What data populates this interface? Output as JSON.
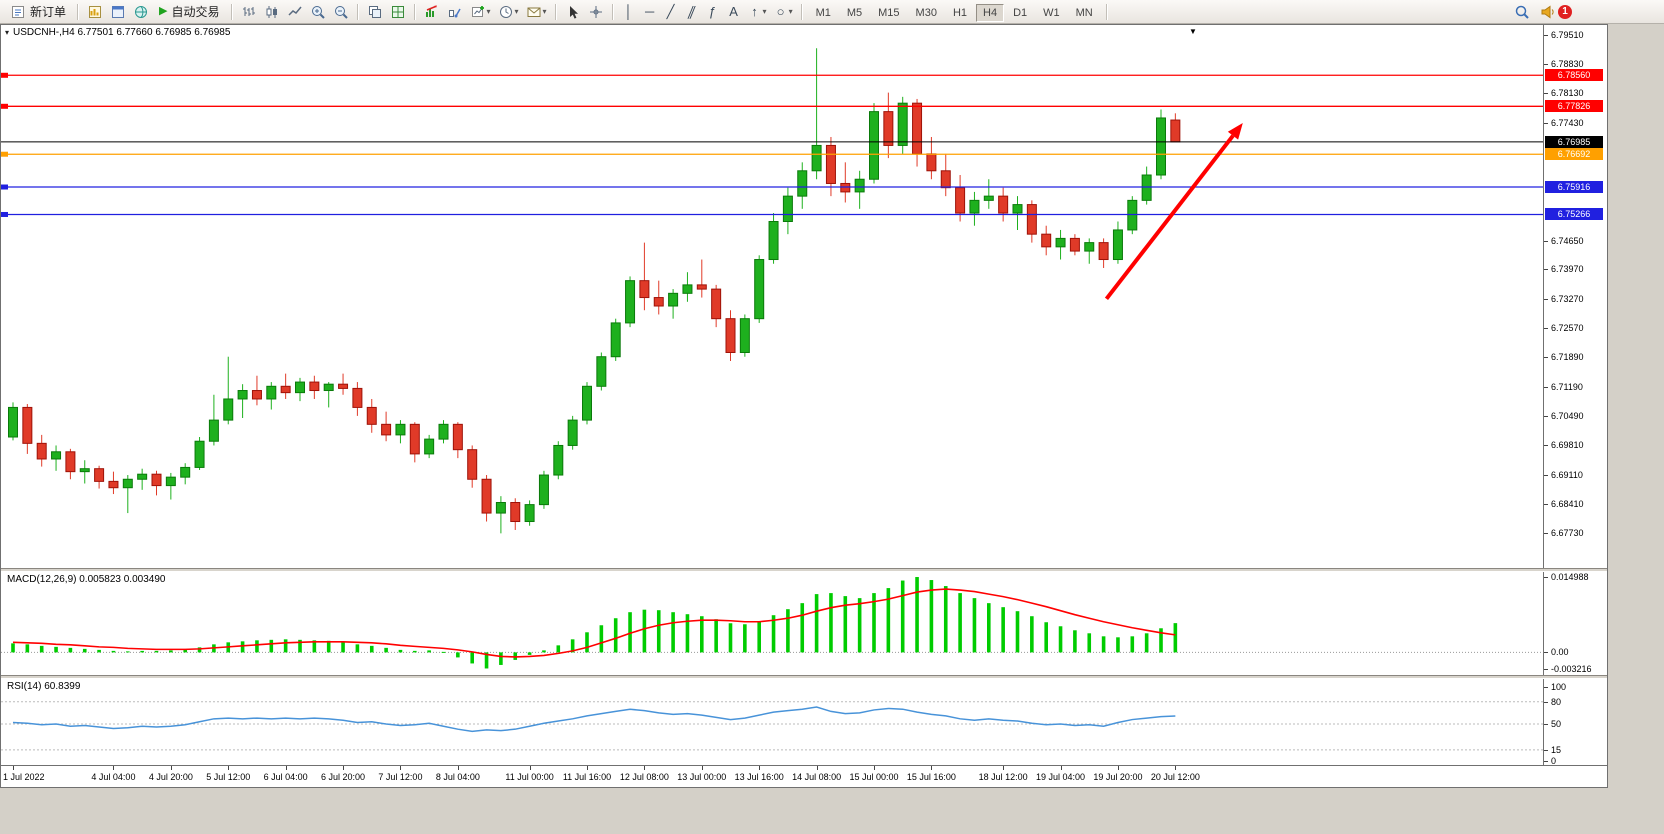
{
  "toolbar": {
    "new_order_label": "新订单",
    "autotrading_label": "自动交易",
    "timeframes": [
      "M1",
      "M5",
      "M15",
      "M30",
      "H1",
      "H4",
      "D1",
      "W1",
      "MN"
    ],
    "active_timeframe": "H4",
    "notification_count": "1",
    "glyphs": {
      "play": "▶",
      "vertical_line": "│",
      "horizontal_line": "─",
      "trendline": "╱",
      "channel": "∥",
      "fibonacci": "ƒ",
      "text_tool": "A",
      "arrows_tool": "↑",
      "shapes_tool": "○",
      "caret": "▾",
      "scroll_end": "▼",
      "title_menu": "▾"
    }
  },
  "chart": {
    "title": "USDCNH-,H4 6.77501 6.77660 6.76985 6.76985",
    "symbol": "USDCNH-",
    "period": "H4",
    "ohlc": {
      "open": "6.77501",
      "high": "6.77660",
      "low": "6.76985",
      "close": "6.76985"
    }
  },
  "indicators": {
    "macd_label": "MACD(12,26,9) 0.005823 0.003490",
    "rsi_label": "RSI(14) 60.8399"
  },
  "chart_data": [
    {
      "type": "candlestick",
      "symbol": "USDCNH-",
      "period": "H4",
      "ylim": [
        6.669,
        6.7975
      ],
      "y_tick_labels": [
        "6.79510",
        "6.78830",
        "6.78130",
        "6.77430",
        "6.74650",
        "6.73970",
        "6.73270",
        "6.72570",
        "6.71890",
        "6.71190",
        "6.70490",
        "6.69810",
        "6.69110",
        "6.68410",
        "6.67730"
      ],
      "x_tick_labels": [
        {
          "i": 0,
          "t": "1 Jul 2022"
        },
        {
          "i": 7,
          "t": "4 Jul 04:00"
        },
        {
          "i": 11,
          "t": "4 Jul 20:00"
        },
        {
          "i": 15,
          "t": "5 Jul 12:00"
        },
        {
          "i": 19,
          "t": "6 Jul 04:00"
        },
        {
          "i": 23,
          "t": "6 Jul 20:00"
        },
        {
          "i": 27,
          "t": "7 Jul 12:00"
        },
        {
          "i": 31,
          "t": "8 Jul 04:00"
        },
        {
          "i": 36,
          "t": "11 Jul 00:00"
        },
        {
          "i": 40,
          "t": "11 Jul 16:00"
        },
        {
          "i": 44,
          "t": "12 Jul 08:00"
        },
        {
          "i": 48,
          "t": "13 Jul 00:00"
        },
        {
          "i": 52,
          "t": "13 Jul 16:00"
        },
        {
          "i": 56,
          "t": "14 Jul 08:00"
        },
        {
          "i": 60,
          "t": "15 Jul 00:00"
        },
        {
          "i": 64,
          "t": "15 Jul 16:00"
        },
        {
          "i": 69,
          "t": "18 Jul 12:00"
        },
        {
          "i": 73,
          "t": "19 Jul 04:00"
        },
        {
          "i": 77,
          "t": "19 Jul 20:00"
        },
        {
          "i": 81,
          "t": "20 Jul 12:00"
        }
      ],
      "candles": [
        [
          6.7,
          6.7082,
          6.6992,
          6.707
        ],
        [
          6.707,
          6.7078,
          6.696,
          6.6985
        ],
        [
          6.6985,
          6.7005,
          6.693,
          6.6948
        ],
        [
          6.6948,
          6.698,
          6.692,
          6.6965
        ],
        [
          6.6965,
          6.6972,
          6.69,
          6.6918
        ],
        [
          6.6918,
          6.6945,
          6.689,
          6.6925
        ],
        [
          6.6925,
          6.6932,
          6.6878,
          6.6895
        ],
        [
          6.6895,
          6.6918,
          6.6865,
          6.688
        ],
        [
          6.688,
          6.691,
          6.682,
          6.69
        ],
        [
          6.69,
          6.6925,
          6.6875,
          6.6912
        ],
        [
          6.6912,
          6.692,
          6.6862,
          6.6885
        ],
        [
          6.6885,
          6.6915,
          6.6852,
          6.6905
        ],
        [
          6.6905,
          6.6938,
          6.6888,
          6.6928
        ],
        [
          6.6928,
          6.7,
          6.6922,
          6.699
        ],
        [
          6.699,
          6.71,
          6.698,
          6.704
        ],
        [
          6.704,
          6.719,
          6.703,
          6.709
        ],
        [
          6.709,
          6.7125,
          6.7045,
          6.711
        ],
        [
          6.711,
          6.7145,
          6.7075,
          6.709
        ],
        [
          6.709,
          6.713,
          6.7065,
          6.712
        ],
        [
          6.712,
          6.715,
          6.709,
          6.7105
        ],
        [
          6.7105,
          6.714,
          6.7085,
          6.713
        ],
        [
          6.713,
          6.7145,
          6.709,
          6.711
        ],
        [
          6.711,
          6.713,
          6.707,
          6.7125
        ],
        [
          6.7125,
          6.715,
          6.71,
          6.7115
        ],
        [
          6.7115,
          6.713,
          6.705,
          6.707
        ],
        [
          6.707,
          6.709,
          6.701,
          6.703
        ],
        [
          6.703,
          6.706,
          6.699,
          6.7005
        ],
        [
          6.7005,
          6.704,
          6.6985,
          6.703
        ],
        [
          6.703,
          6.7035,
          6.694,
          6.696
        ],
        [
          6.696,
          6.7005,
          6.695,
          6.6995
        ],
        [
          6.6995,
          6.704,
          6.6985,
          6.703
        ],
        [
          6.703,
          6.7035,
          6.695,
          6.697
        ],
        [
          6.697,
          6.698,
          6.688,
          6.69
        ],
        [
          6.69,
          6.691,
          6.68,
          6.682
        ],
        [
          6.682,
          6.686,
          6.6772,
          6.6845
        ],
        [
          6.6845,
          6.6855,
          6.678,
          6.68
        ],
        [
          6.68,
          6.685,
          6.679,
          6.684
        ],
        [
          6.684,
          6.692,
          6.683,
          6.691
        ],
        [
          6.691,
          6.699,
          6.69,
          6.698
        ],
        [
          6.698,
          6.705,
          6.697,
          6.704
        ],
        [
          6.704,
          6.713,
          6.703,
          6.712
        ],
        [
          6.712,
          6.72,
          6.711,
          6.719
        ],
        [
          6.719,
          6.728,
          6.718,
          6.727
        ],
        [
          6.727,
          6.738,
          6.726,
          6.737
        ],
        [
          6.737,
          6.746,
          6.73,
          6.733
        ],
        [
          6.733,
          6.737,
          6.729,
          6.731
        ],
        [
          6.731,
          6.735,
          6.728,
          6.734
        ],
        [
          6.734,
          6.739,
          6.732,
          6.736
        ],
        [
          6.736,
          6.742,
          6.733,
          6.735
        ],
        [
          6.735,
          6.736,
          6.726,
          6.728
        ],
        [
          6.728,
          6.73,
          6.718,
          6.72
        ],
        [
          6.72,
          6.729,
          6.719,
          6.728
        ],
        [
          6.728,
          6.743,
          6.727,
          6.742
        ],
        [
          6.742,
          6.753,
          6.741,
          6.751
        ],
        [
          6.751,
          6.759,
          6.748,
          6.757
        ],
        [
          6.757,
          6.765,
          6.754,
          6.763
        ],
        [
          6.763,
          6.792,
          6.761,
          6.769
        ],
        [
          6.769,
          6.771,
          6.757,
          6.76
        ],
        [
          6.76,
          6.765,
          6.7555,
          6.758
        ],
        [
          6.758,
          6.763,
          6.754,
          6.761
        ],
        [
          6.761,
          6.779,
          6.76,
          6.777
        ],
        [
          6.777,
          6.7815,
          6.766,
          6.769
        ],
        [
          6.769,
          6.7805,
          6.767,
          6.779
        ],
        [
          6.779,
          6.78,
          6.764,
          6.767
        ],
        [
          6.767,
          6.771,
          6.761,
          6.763
        ],
        [
          6.763,
          6.767,
          6.757,
          6.759
        ],
        [
          6.759,
          6.762,
          6.751,
          6.753
        ],
        [
          6.753,
          6.758,
          6.75,
          6.756
        ],
        [
          6.756,
          6.761,
          6.754,
          6.757
        ],
        [
          6.757,
          6.759,
          6.751,
          6.753
        ],
        [
          6.753,
          6.757,
          6.749,
          6.755
        ],
        [
          6.755,
          6.756,
          6.746,
          6.748
        ],
        [
          6.748,
          6.75,
          6.743,
          6.745
        ],
        [
          6.745,
          6.749,
          6.742,
          6.747
        ],
        [
          6.747,
          6.748,
          6.743,
          6.744
        ],
        [
          6.744,
          6.747,
          6.741,
          6.746
        ],
        [
          6.746,
          6.747,
          6.74,
          6.742
        ],
        [
          6.742,
          6.751,
          6.741,
          6.749
        ],
        [
          6.749,
          6.757,
          6.748,
          6.756
        ],
        [
          6.756,
          6.764,
          6.755,
          6.762
        ],
        [
          6.762,
          6.7775,
          6.761,
          6.7755
        ],
        [
          6.77501,
          6.7766,
          6.76985,
          6.76985
        ]
      ],
      "hlines": [
        {
          "price": 6.7856,
          "label": "6.78560",
          "color": "#FF0000"
        },
        {
          "price": 6.77826,
          "label": "6.77826",
          "color": "#FF0000"
        },
        {
          "price": 6.76692,
          "label": "6.76692",
          "color": "#FFA000"
        },
        {
          "price": 6.75916,
          "label": "6.75916",
          "color": "#2020E0"
        },
        {
          "price": 6.75266,
          "label": "6.75266",
          "color": "#2020E0"
        }
      ],
      "current": {
        "price": 6.76985,
        "label": "6.76985",
        "line_color": "#000000",
        "badge_color": "#000000"
      },
      "arrow": {
        "from_i": 76.2,
        "from_price": 6.7327,
        "to_i": 85.7,
        "to_price": 6.7743,
        "color": "#FF0000"
      }
    },
    {
      "type": "bar",
      "name": "MACD",
      "params": "12,26,9",
      "value": "0.005823",
      "signal_value": "0.003490",
      "ylim": [
        -0.0045,
        0.016
      ],
      "y_ticks": [
        {
          "v": 0.014988,
          "t": "0.014988"
        },
        {
          "v": 0,
          "t": "0.00"
        },
        {
          "v": -0.003216,
          "t": "-0.003216"
        }
      ],
      "histogram_color": "#00CC00",
      "signal_color": "#FF0000",
      "histogram": [
        0.0018,
        0.0016,
        0.0013,
        0.0011,
        0.0009,
        0.0007,
        0.0005,
        0.0003,
        0.0002,
        0.0003,
        0.0003,
        0.0004,
        0.0006,
        0.001,
        0.0016,
        0.002,
        0.0022,
        0.0024,
        0.0025,
        0.0026,
        0.0025,
        0.0024,
        0.0023,
        0.002,
        0.0016,
        0.0013,
        0.0009,
        0.0005,
        0.0003,
        0.0004,
        0.0001,
        -0.001,
        -0.0022,
        -0.0032,
        -0.0025,
        -0.0015,
        -0.0005,
        0.0004,
        0.0014,
        0.0026,
        0.004,
        0.0054,
        0.0068,
        0.008,
        0.0085,
        0.0084,
        0.008,
        0.0076,
        0.0072,
        0.0066,
        0.0058,
        0.0056,
        0.0062,
        0.0074,
        0.0086,
        0.0098,
        0.0116,
        0.0118,
        0.0112,
        0.0108,
        0.0118,
        0.0128,
        0.0143,
        0.015,
        0.0144,
        0.0132,
        0.0118,
        0.0108,
        0.0098,
        0.009,
        0.0082,
        0.0072,
        0.006,
        0.0052,
        0.0044,
        0.0038,
        0.0032,
        0.003,
        0.0032,
        0.0038,
        0.0048,
        0.005823
      ],
      "signal": [
        0.002,
        0.0019,
        0.0018,
        0.0016,
        0.0015,
        0.0013,
        0.0011,
        0.001,
        0.0008,
        0.0007,
        0.0006,
        0.0006,
        0.0006,
        0.0007,
        0.0009,
        0.0011,
        0.0013,
        0.0015,
        0.0017,
        0.0019,
        0.002,
        0.0021,
        0.0021,
        0.0021,
        0.002,
        0.0019,
        0.0017,
        0.0014,
        0.0012,
        0.001,
        0.0008,
        0.0005,
        0.0001,
        -0.0004,
        -0.0008,
        -0.0009,
        -0.0008,
        -0.0006,
        -0.0002,
        0.0003,
        0.001,
        0.0019,
        0.0028,
        0.0038,
        0.0047,
        0.0054,
        0.0059,
        0.0062,
        0.0064,
        0.0064,
        0.0063,
        0.0061,
        0.0061,
        0.0064,
        0.0068,
        0.0074,
        0.0082,
        0.0089,
        0.0094,
        0.0097,
        0.0101,
        0.0106,
        0.0113,
        0.012,
        0.0124,
        0.0126,
        0.0124,
        0.0121,
        0.0116,
        0.0111,
        0.0105,
        0.0098,
        0.0091,
        0.0083,
        0.0075,
        0.0068,
        0.0061,
        0.0055,
        0.0049,
        0.0044,
        0.0039,
        0.00349
      ]
    },
    {
      "type": "line",
      "name": "RSI",
      "params": "14",
      "value": "60.8399",
      "ylim": [
        0,
        100
      ],
      "y_ticks": [
        {
          "v": 100,
          "t": "100"
        },
        {
          "v": 80,
          "t": "80"
        },
        {
          "v": 50,
          "t": "50"
        },
        {
          "v": 15,
          "t": "15"
        },
        {
          "v": 0,
          "t": "0"
        }
      ],
      "levels": [
        80,
        50,
        15
      ],
      "line_color": "#4893D9",
      "values": [
        52,
        51,
        49,
        50,
        47,
        48,
        46,
        44,
        45,
        47,
        46,
        47,
        49,
        53,
        57,
        58,
        57,
        58,
        57,
        58,
        57,
        58,
        57,
        55,
        52,
        53,
        50,
        48,
        49,
        51,
        47,
        43,
        40,
        42,
        41,
        43,
        47,
        51,
        54,
        57,
        61,
        64,
        67,
        70,
        68,
        65,
        63,
        64,
        62,
        59,
        56,
        58,
        62,
        66,
        68,
        70,
        73,
        67,
        64,
        65,
        69,
        71,
        70,
        66,
        63,
        61,
        57,
        55,
        57,
        55,
        54,
        51,
        49,
        50,
        48,
        49,
        47,
        52,
        56,
        58,
        60,
        60.8399
      ]
    }
  ]
}
